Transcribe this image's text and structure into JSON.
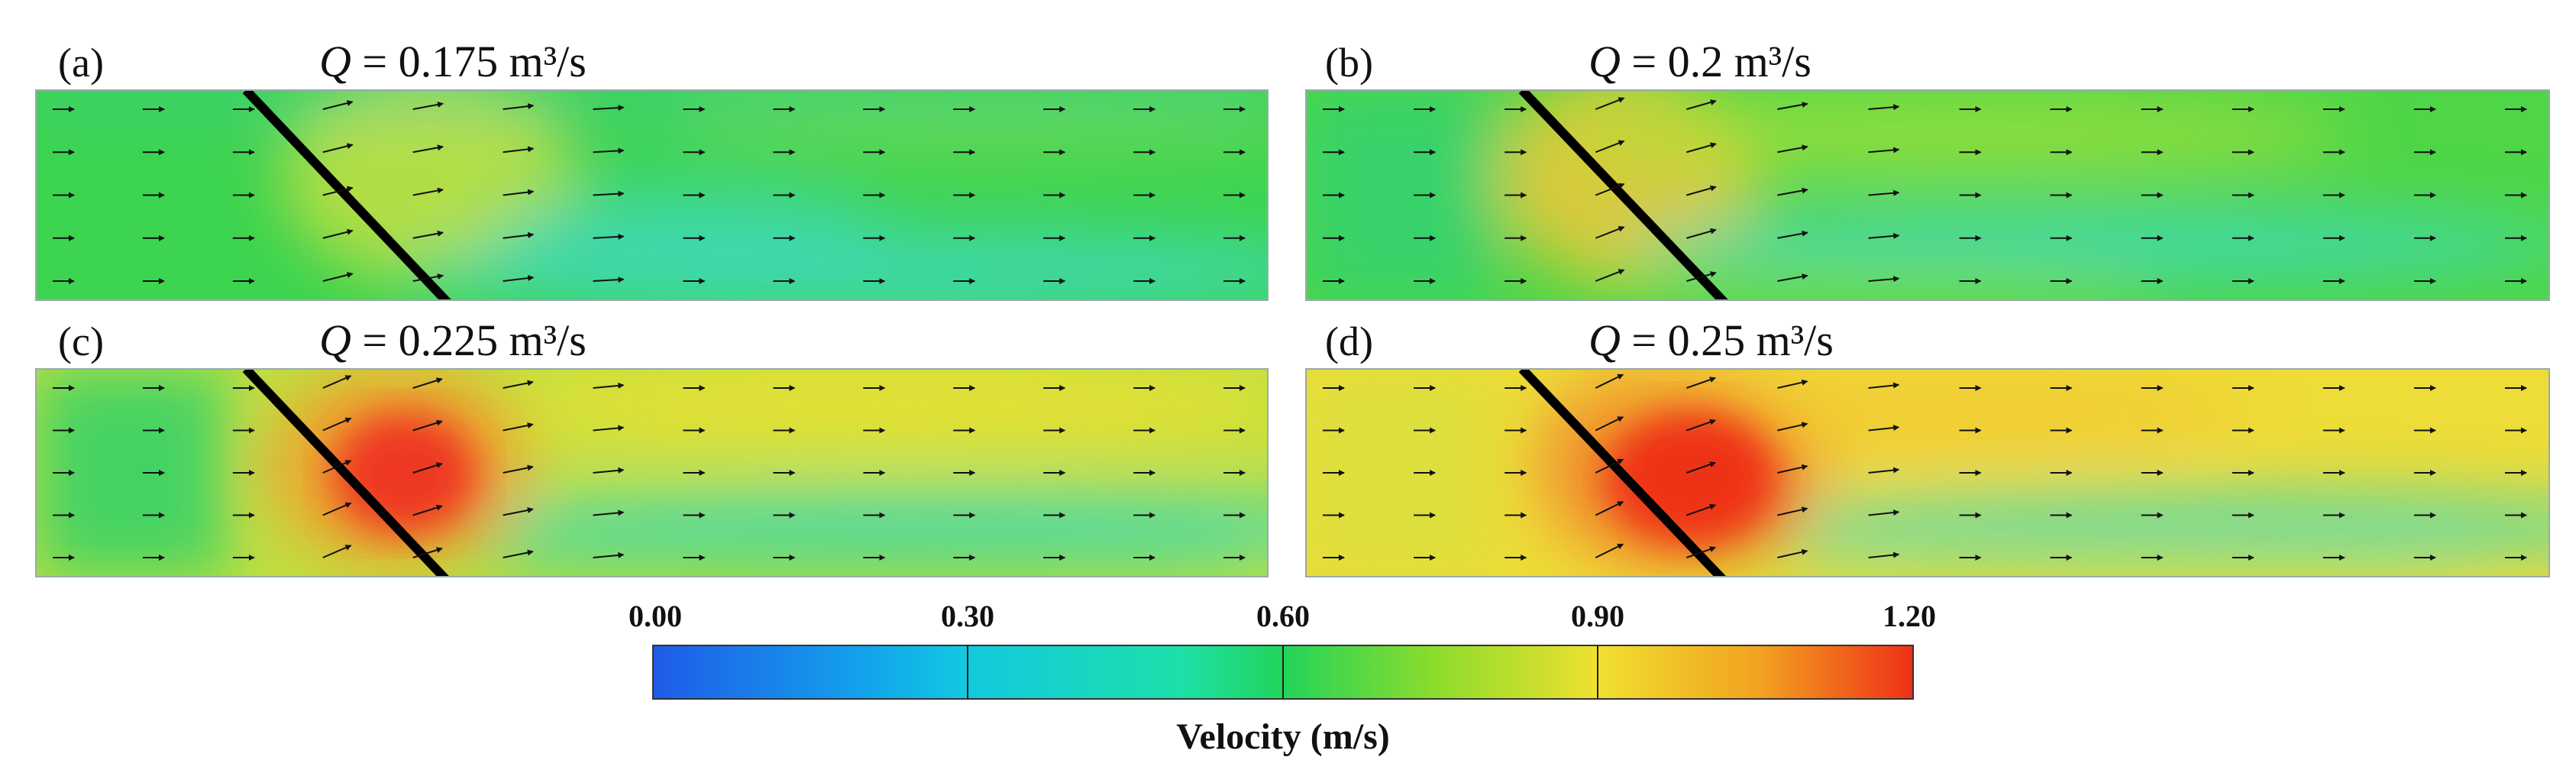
{
  "panels": [
    {
      "id": "a",
      "label": "(a)",
      "q_symbol": "Q",
      "q_text": " = 0.175 m³/s"
    },
    {
      "id": "b",
      "label": "(b)",
      "q_symbol": "Q",
      "q_text": " = 0.2 m³/s"
    },
    {
      "id": "c",
      "label": "(c)",
      "q_symbol": "Q",
      "q_text": " = 0.225 m³/s"
    },
    {
      "id": "d",
      "label": "(d)",
      "q_symbol": "Q",
      "q_text": " = 0.25 m³/s"
    }
  ],
  "colorbar": {
    "ticks": [
      "0.00",
      "0.30",
      "0.60",
      "0.90",
      "1.20"
    ],
    "label": "Velocity (m/s)",
    "colors": [
      "#1f5be8",
      "#13c4e0",
      "#22d45a",
      "#f0e030",
      "#ee3018"
    ]
  }
}
